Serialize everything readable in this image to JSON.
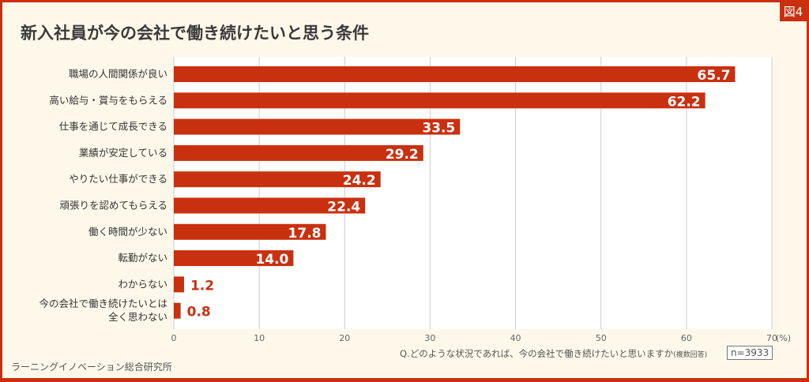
{
  "badge": "図4",
  "title": "新入社員が今の会社で働き続けたいと思う条件",
  "question": "Q.どのような状況であれば、今の会社で働き続けたいと思いますか",
  "question_note": "(複数回答)",
  "n": "n=3933",
  "source": "ラーニングイノベーション総合研究所",
  "chart_data": {
    "type": "bar",
    "orientation": "horizontal",
    "categories": [
      "職場の人間関係が良い",
      "高い給与・賞与をもらえる",
      "仕事を通じて成長できる",
      "業績が安定している",
      "やりたい仕事ができる",
      "頑張りを認めてもらえる",
      "働く時間が少ない",
      "転勤がない",
      "わからない",
      "今の会社で働き続けたいとは\n全く思わない"
    ],
    "values": [
      65.7,
      62.2,
      33.5,
      29.2,
      24.2,
      22.4,
      17.8,
      14.0,
      1.2,
      0.8
    ],
    "value_labels": [
      "65.7",
      "62.2",
      "33.5",
      "29.2",
      "24.2",
      "22.4",
      "17.8",
      "14.0",
      "1.2",
      "0.8"
    ],
    "xlim": [
      0,
      70
    ],
    "ticks": [
      "0",
      "10",
      "20",
      "30",
      "40",
      "50",
      "60",
      "70"
    ],
    "unit": "(%)",
    "grid": true,
    "bar_color": "#c9300f"
  }
}
